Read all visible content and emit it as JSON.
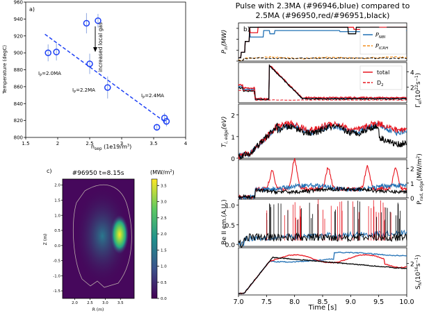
{
  "figure_title": "Pulse with 2.3MA (#96946,blue) compared to\n2.5MA (#96950,red/#96951,black)",
  "colors": {
    "blue": "#1f6fb4",
    "red": "#e8131d",
    "black": "#000000",
    "orange": "#f28e1c",
    "markers": "#1c3ff5"
  },
  "chart_data": [
    {
      "type": "scatter",
      "panel": "a)",
      "xlabel": "n_sep (1e19/m^3)",
      "ylabel": "Temperature (degC)",
      "xlim": [
        1.5,
        4.0
      ],
      "ylim": [
        800,
        960
      ],
      "xticks": [
        "1.5",
        "2",
        "2.5",
        "3",
        "3.5",
        "4"
      ],
      "yticks": [
        "800",
        "820",
        "840",
        "860",
        "880",
        "900",
        "920",
        "940",
        "960"
      ],
      "points": [
        {
          "x": 1.85,
          "y": 900,
          "err": 10
        },
        {
          "x": 1.98,
          "y": 901,
          "err": 10
        },
        {
          "x": 2.45,
          "y": 935,
          "err": 12
        },
        {
          "x": 2.5,
          "y": 887,
          "err": 12
        },
        {
          "x": 2.63,
          "y": 938,
          "err": 8
        },
        {
          "x": 2.78,
          "y": 859,
          "err": 13
        },
        {
          "x": 3.55,
          "y": 812,
          "err": 4
        },
        {
          "x": 3.67,
          "y": 823,
          "err": 6
        },
        {
          "x": 3.7,
          "y": 819,
          "err": 6
        }
      ],
      "fit_line": {
        "x": [
          1.8,
          3.7
        ],
        "y": [
          922,
          817
        ]
      },
      "annotations": {
        "ip1": "I",
        "ip1_sub": "P",
        "ip1_val": "=2.0MA",
        "ip2": "I",
        "ip2_sub": "P",
        "ip2_val": "=2.2MA",
        "ip3": "I",
        "ip3_sub": "P",
        "ip3_val": "=2.4MA",
        "gas": "increased local gas"
      }
    },
    {
      "type": "heatmap",
      "panel": "c)",
      "title": "#96950 t=8.15s",
      "unit": "(MW/m",
      "unit_sup": "2",
      "unit_end": ")",
      "xlabel": "R (m)",
      "ylabel": "Z (m)",
      "xticks": [
        "2.0",
        "2.5",
        "3.0",
        "3.5"
      ],
      "yticks": [
        "2.0",
        "1.5",
        "1.0",
        "0.5",
        "0.0",
        "-0.5",
        "-1.0",
        "-1.5"
      ],
      "colorbar_ticks": [
        "3.5",
        "3.0",
        "2.5",
        "2.0",
        "1.5",
        "1.0",
        "0.5",
        "0.0"
      ],
      "colorbar_range": [
        0.0,
        3.7
      ]
    },
    {
      "type": "line",
      "panel": "b)",
      "xlabel": "Time [s]",
      "xlim": [
        7.0,
        10.0
      ],
      "xticks": [
        "7.0",
        "7.5",
        "8.0",
        "8.5",
        "9.0",
        "9.5",
        "10.0"
      ],
      "subplots": [
        {
          "id": "pin",
          "ylabel": "P_in(MW)",
          "legend": [
            {
              "name": "P",
              "sub": "NBI",
              "color": "blue"
            },
            {
              "name": "P",
              "sub": "ICRH",
              "color": "orange"
            }
          ]
        },
        {
          "id": "gamma",
          "ylabel_right": "Γ_el(10^22 s^-1)",
          "yticks_right": [
            "2",
            "4"
          ],
          "legend": [
            {
              "name": "total",
              "color": "red",
              "style": "solid"
            },
            {
              "name": "D",
              "sub": "2",
              "color": "red",
              "style": "dashed"
            }
          ]
        },
        {
          "id": "ti",
          "ylabel": "T_i,edge(eV)",
          "yticks": [
            "0",
            "1",
            "2"
          ]
        },
        {
          "id": "prad",
          "ylabel_right": "P_rad,edge(MW/m^2)",
          "yticks_right": [
            "0",
            "1",
            "2"
          ]
        },
        {
          "id": "be",
          "ylabel": "Be II em.(A.U.)",
          "yticks": [
            "0.0",
            "0.5",
            "1.0"
          ]
        },
        {
          "id": "sn",
          "ylabel_right": "S_N(10^16 s^-1)",
          "yticks_right": [
            "2"
          ]
        }
      ]
    }
  ]
}
